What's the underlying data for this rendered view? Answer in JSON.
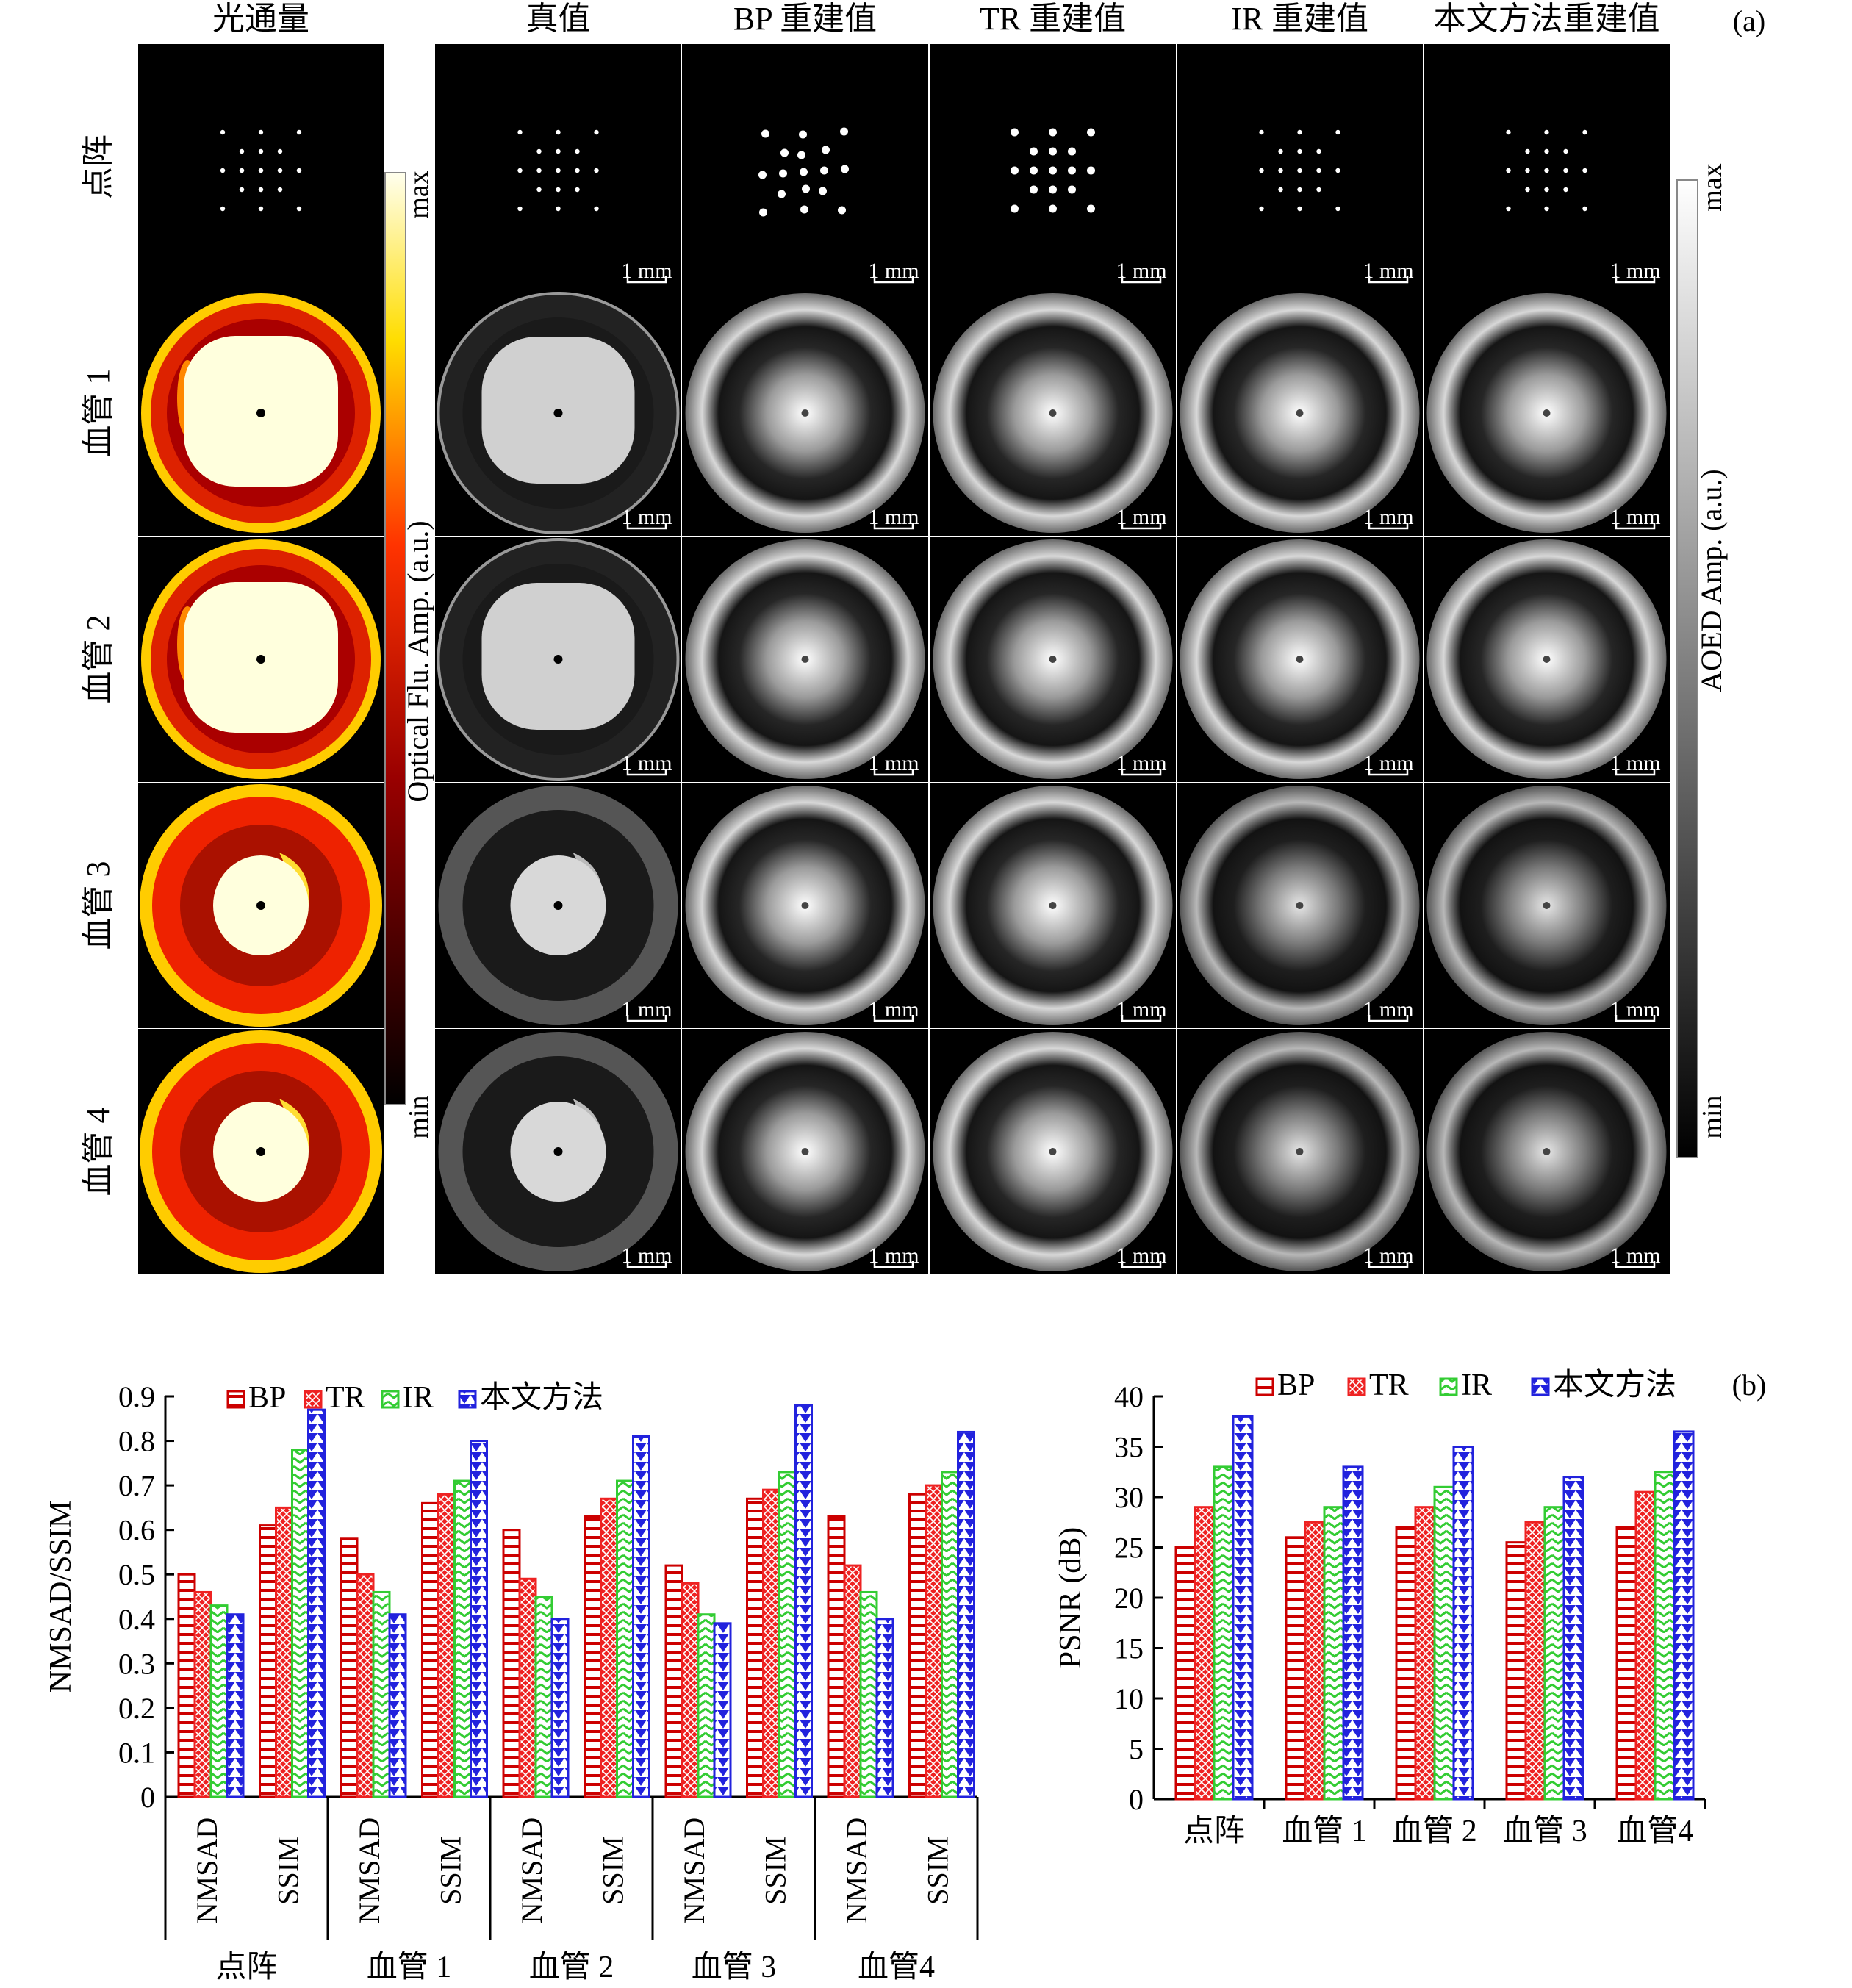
{
  "panel_a": {
    "tag": "(a)",
    "col_headers": [
      "光通量",
      "真值",
      "BP 重建值",
      "TR 重建值",
      "IR 重建值",
      "本文方法重建值"
    ],
    "row_labels": [
      "点阵",
      "血管 1",
      "血管 2",
      "血管 3",
      "血管 4"
    ],
    "scale_text": "1 mm",
    "fluence_bar": {
      "label": "Optical Flu. Amp. (a.u.)",
      "max": "max",
      "min": "min"
    },
    "aoed_bar": {
      "label": "AOED Amp. (a.u.)",
      "max": "max",
      "min": "min"
    }
  },
  "chart_data": [
    {
      "type": "bar",
      "ylabel": "NMSAD/SSIM",
      "ylim": [
        0,
        0.9
      ],
      "yticks": [
        "0",
        "0.1",
        "0.2",
        "0.3",
        "0.4",
        "0.5",
        "0.6",
        "0.7",
        "0.8",
        "0.9"
      ],
      "groups": [
        "点阵",
        "血管 1",
        "血管 2",
        "血管 3",
        "血管4"
      ],
      "metrics": [
        "NMSAD",
        "SSIM"
      ],
      "legend": [
        "BP",
        "TR",
        "IR",
        "本文方法"
      ],
      "legend_position": "top",
      "series": [
        {
          "name": "BP",
          "color": "#cc0000",
          "values": [
            0.5,
            0.61,
            0.58,
            0.66,
            0.6,
            0.63,
            0.52,
            0.67,
            0.63,
            0.68
          ]
        },
        {
          "name": "TR",
          "color": "#ee2222",
          "values": [
            0.46,
            0.65,
            0.5,
            0.68,
            0.49,
            0.67,
            0.48,
            0.69,
            0.52,
            0.7
          ]
        },
        {
          "name": "IR",
          "color": "#33cc33",
          "values": [
            0.43,
            0.78,
            0.46,
            0.71,
            0.45,
            0.71,
            0.41,
            0.73,
            0.46,
            0.73
          ]
        },
        {
          "name": "本文方法",
          "color": "#2222dd",
          "values": [
            0.41,
            0.87,
            0.41,
            0.8,
            0.4,
            0.81,
            0.39,
            0.88,
            0.4,
            0.82
          ]
        }
      ]
    },
    {
      "type": "bar",
      "ylabel": "PSNR (dB)",
      "ylim": [
        0,
        40
      ],
      "yticks": [
        "0",
        "5",
        "10",
        "15",
        "20",
        "25",
        "30",
        "35",
        "40"
      ],
      "categories": [
        "点阵",
        "血管 1",
        "血管 2",
        "血管 3",
        "血管4"
      ],
      "legend": [
        "BP",
        "TR",
        "IR",
        "本文方法"
      ],
      "legend_position": "top",
      "tag": "(b)",
      "series": [
        {
          "name": "BP",
          "color": "#cc0000",
          "values": [
            25,
            26,
            27,
            25.5,
            27
          ]
        },
        {
          "name": "TR",
          "color": "#ee2222",
          "values": [
            29,
            27.5,
            29,
            27.5,
            30.5
          ]
        },
        {
          "name": "IR",
          "color": "#33cc33",
          "values": [
            33,
            29,
            31,
            29,
            32.5
          ]
        },
        {
          "name": "本文方法",
          "color": "#2222dd",
          "values": [
            38,
            33,
            35,
            32,
            36.5
          ]
        }
      ]
    }
  ]
}
